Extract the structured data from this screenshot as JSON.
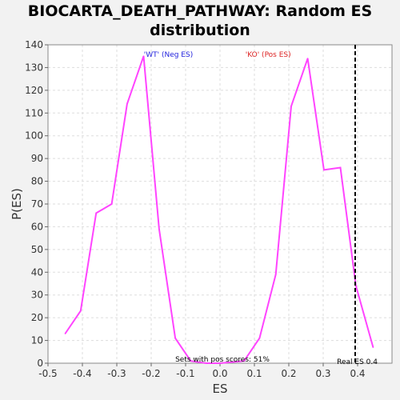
{
  "chart_data": {
    "type": "line",
    "title_lines": [
      "BIOCARTA_DEATH_PATHWAY: Random ES",
      "distribution"
    ],
    "xlabel": "ES",
    "ylabel": "P(ES)",
    "xlim": [
      -0.5,
      0.5
    ],
    "ylim": [
      0,
      140
    ],
    "x_ticks": [
      "-0.5",
      "-0.4",
      "-0.3",
      "-0.2",
      "-0.1",
      "0.0",
      "0.1",
      "0.2",
      "0.3",
      "0.4"
    ],
    "x_tick_values": [
      -0.5,
      -0.4,
      -0.3,
      -0.2,
      -0.1,
      0.0,
      0.1,
      0.2,
      0.3,
      0.4
    ],
    "y_ticks": [
      "0",
      "10",
      "20",
      "30",
      "40",
      "50",
      "60",
      "70",
      "80",
      "90",
      "100",
      "110",
      "120",
      "130",
      "140"
    ],
    "y_tick_values": [
      0,
      10,
      20,
      30,
      40,
      50,
      60,
      70,
      80,
      90,
      100,
      110,
      120,
      130,
      140
    ],
    "grid": true,
    "series": [
      {
        "color": "#ff44ff",
        "x": [
          -0.45,
          -0.405,
          -0.36,
          -0.315,
          -0.27,
          -0.222,
          -0.177,
          -0.13,
          -0.085,
          -0.04,
          0.0,
          0.07,
          0.115,
          0.162,
          0.207,
          0.255,
          0.302,
          0.35,
          0.395,
          0.445
        ],
        "y": [
          13,
          23,
          66,
          70,
          114,
          135,
          59,
          11,
          1,
          0,
          0,
          1,
          11,
          39,
          113,
          134,
          85,
          86,
          34,
          7
        ]
      }
    ],
    "annotations": {
      "neg_label": "'WT' (Neg ES)",
      "neg_color": "#2222dd",
      "pos_label": "'KO' (Pos ES)",
      "pos_color": "#dd2222",
      "sets_text": "Sets with pos scores: 51%",
      "real_es_text": "Real ES 0.4",
      "real_es_value": 0.393
    }
  }
}
